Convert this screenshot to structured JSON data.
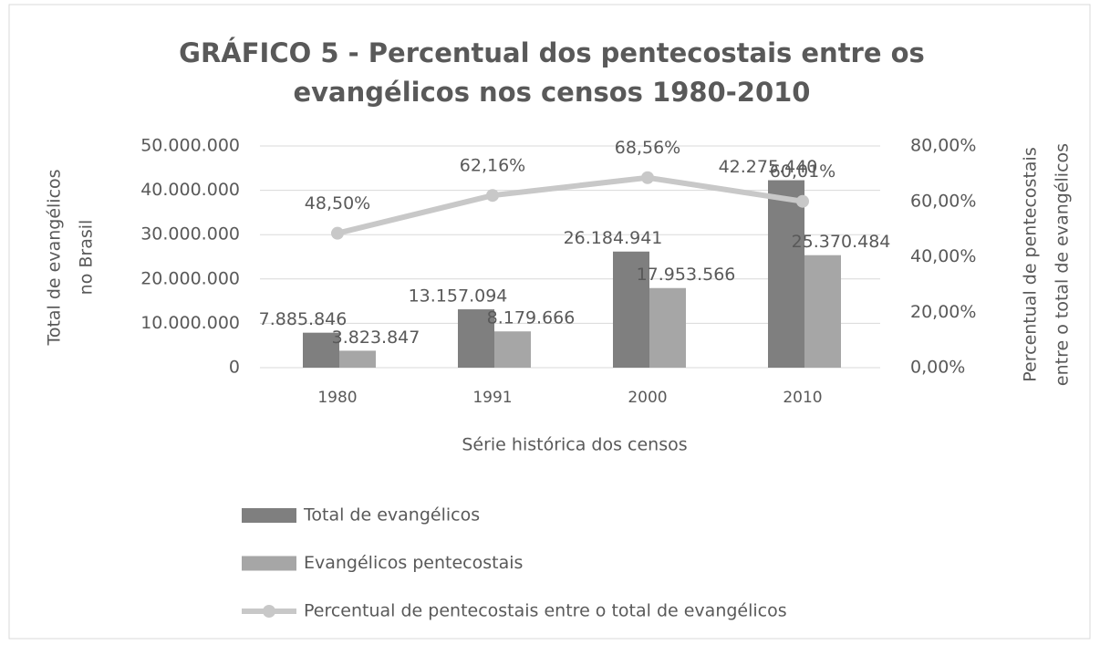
{
  "chart_data": {
    "type": "bar_line",
    "title": [
      "GRÁFICO 5 - Percentual dos pentecostais entre os",
      "evangélicos nos censos 1980-2010"
    ],
    "ylabel": [
      "Total de evangélicos",
      "no Brasil"
    ],
    "y2label": [
      "Percentual de pentecostais",
      "entre o total de evangélicos"
    ],
    "xlabel": "Série histórica dos censos",
    "categories": [
      "1980",
      "1991",
      "2000",
      "2010"
    ],
    "series": [
      {
        "name": "Total de evangélicos",
        "type": "bar",
        "color": "#7f7f7f",
        "values": [
          7885846,
          13157094,
          26184941,
          42275440
        ],
        "value_labels": [
          "7.885.846",
          "13.157.094",
          "26.184.941",
          "42.275.440"
        ]
      },
      {
        "name": "Evangélicos pentecostais",
        "type": "bar",
        "color": "#a6a6a6",
        "values": [
          3823847,
          8179666,
          17953566,
          25370484
        ],
        "value_labels": [
          "3.823.847",
          "8.179.666",
          "17.953.566",
          "25.370.484"
        ]
      },
      {
        "name": "Percentual de pentecostais entre o total de evangélicos",
        "type": "line",
        "axis": "y2",
        "color": "#c8c8c8",
        "values": [
          48.5,
          62.16,
          68.56,
          60.01
        ],
        "value_labels": [
          "48,50%",
          "62,16%",
          "68,56%",
          "60,01%"
        ]
      }
    ],
    "ylim": [
      0,
      50000000
    ],
    "yticks": [
      0,
      {
        "value": 10000000,
        "label": "10.000.000"
      },
      {
        "value": 20000000,
        "label": "20.000.000"
      },
      {
        "value": 30000000,
        "label": "30.000.000"
      },
      {
        "value": 40000000,
        "label": "40.000.000"
      },
      {
        "value": 50000000,
        "label": "50.000.000"
      }
    ],
    "y2lim": [
      0,
      80
    ],
    "y2ticks": [
      {
        "value": 0,
        "label": "0,00%"
      },
      {
        "value": 20,
        "label": "20,00%"
      },
      {
        "value": 40,
        "label": "40,00%"
      },
      {
        "value": 60,
        "label": "60,00%"
      },
      {
        "value": 80,
        "label": "80,00%"
      }
    ],
    "grid": true,
    "legend": "bottom"
  }
}
